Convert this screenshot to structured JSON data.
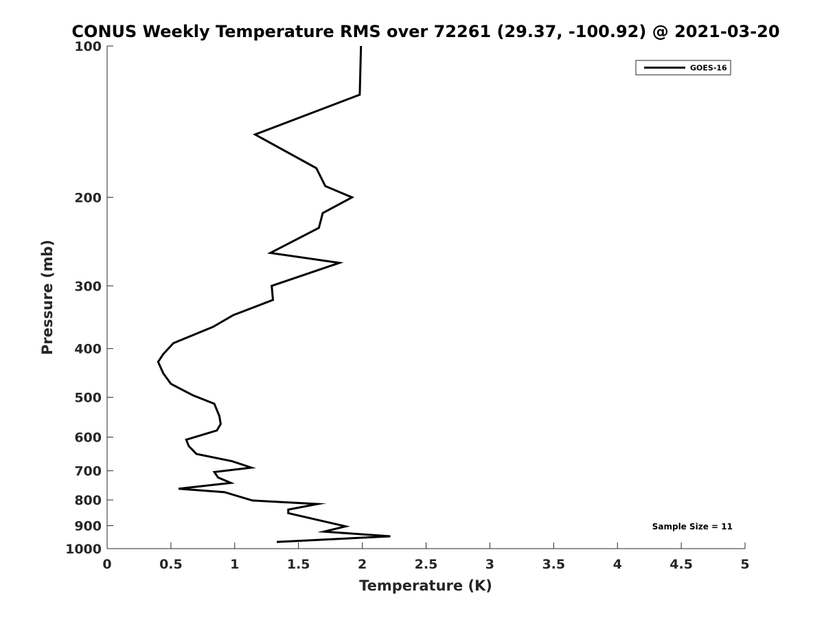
{
  "chart_data": {
    "type": "line",
    "title": "CONUS Weekly Temperature RMS over 72261 (29.37, -100.92) @ 2021-03-20",
    "xlabel": "Temperature (K)",
    "ylabel": "Pressure (mb)",
    "xlim": [
      0,
      5
    ],
    "ylim": [
      100,
      1000
    ],
    "y_scale": "log",
    "y_reversed": true,
    "x_ticks": [
      0,
      0.5,
      1,
      1.5,
      2,
      2.5,
      3,
      3.5,
      4,
      4.5,
      5
    ],
    "y_ticks": [
      100,
      200,
      300,
      400,
      500,
      600,
      700,
      800,
      900,
      1000
    ],
    "grid": false,
    "legend_position": "top-right",
    "annotation": "Sample Size = 11",
    "series": [
      {
        "name": "GOES-16",
        "color": "#000000",
        "points": [
          [
            1.99,
            100
          ],
          [
            1.98,
            125
          ],
          [
            1.16,
            150
          ],
          [
            1.64,
            175
          ],
          [
            1.71,
            190
          ],
          [
            1.92,
            200
          ],
          [
            1.69,
            215
          ],
          [
            1.66,
            230
          ],
          [
            1.28,
            258
          ],
          [
            1.82,
            270
          ],
          [
            1.29,
            300
          ],
          [
            1.3,
            320
          ],
          [
            0.99,
            343
          ],
          [
            0.83,
            362
          ],
          [
            0.52,
            390
          ],
          [
            0.44,
            410
          ],
          [
            0.4,
            425
          ],
          [
            0.44,
            448
          ],
          [
            0.5,
            470
          ],
          [
            0.67,
            495
          ],
          [
            0.84,
            515
          ],
          [
            0.88,
            545
          ],
          [
            0.89,
            565
          ],
          [
            0.86,
            582
          ],
          [
            0.62,
            607
          ],
          [
            0.64,
            625
          ],
          [
            0.7,
            648
          ],
          [
            0.98,
            670
          ],
          [
            1.13,
            690
          ],
          [
            0.84,
            704
          ],
          [
            0.87,
            722
          ],
          [
            0.97,
            740
          ],
          [
            0.56,
            760
          ],
          [
            0.92,
            772
          ],
          [
            1.14,
            802
          ],
          [
            1.65,
            815
          ],
          [
            1.42,
            836
          ],
          [
            1.42,
            850
          ],
          [
            1.68,
            880
          ],
          [
            1.87,
            903
          ],
          [
            1.7,
            925
          ],
          [
            2.22,
            945
          ],
          [
            1.33,
            970
          ]
        ]
      }
    ]
  }
}
